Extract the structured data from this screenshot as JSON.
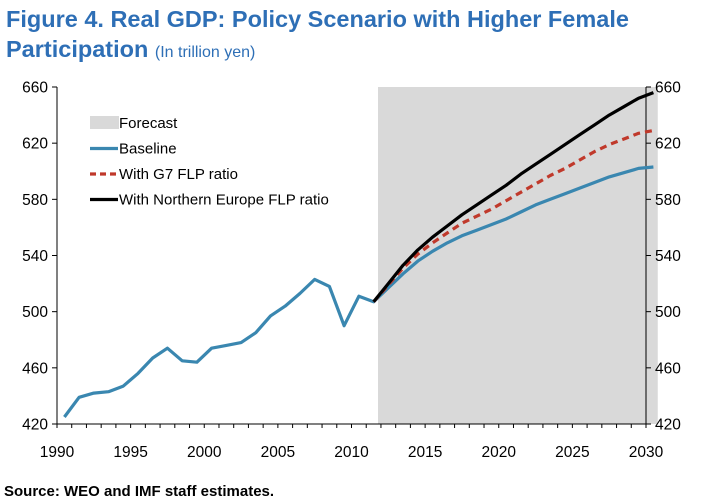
{
  "title": {
    "main": "Figure 4. Real GDP: Policy Scenario with Higher Female Participation",
    "unit": "(In trillion yen)"
  },
  "source": "Source: WEO and IMF staff estimates.",
  "chart_data": {
    "type": "line",
    "title": "Figure 4. Real GDP: Policy Scenario with Higher Female Participation",
    "subtitle": "(In trillion yen)",
    "xlabel": "",
    "ylabel": "",
    "xlim": [
      1990,
      2030
    ],
    "ylim": [
      420,
      660
    ],
    "x_ticks": [
      1990,
      1995,
      2000,
      2005,
      2010,
      2015,
      2020,
      2025,
      2030
    ],
    "y_ticks": [
      420,
      460,
      500,
      540,
      580,
      620,
      660
    ],
    "y_axis_both_sides": true,
    "grid": false,
    "legend_position": "top-left",
    "forecast_shading": {
      "label": "Forecast",
      "start": 2011.8,
      "end": 2030.8,
      "color": "#d9d9d9"
    },
    "series": [
      {
        "name": "Baseline",
        "color": "#3a87b0",
        "style": "solid",
        "x": [
          1990.5,
          1991.5,
          1992.5,
          1993.5,
          1994.5,
          1995.5,
          1996.5,
          1997.5,
          1998.5,
          1999.5,
          2000.5,
          2001.5,
          2002.5,
          2003.5,
          2004.5,
          2005.5,
          2006.5,
          2007.5,
          2008.5,
          2009.5,
          2010.5,
          2011.5,
          2012.5,
          2013.5,
          2014.5,
          2015.5,
          2016.5,
          2017.5,
          2018.5,
          2019.5,
          2020.5,
          2021.5,
          2022.5,
          2023.5,
          2024.5,
          2025.5,
          2026.5,
          2027.5,
          2028.5,
          2029.5,
          2030.5
        ],
        "values": [
          425,
          439,
          442,
          443,
          447,
          456,
          467,
          474,
          465,
          464,
          474,
          476,
          478,
          485,
          497,
          504,
          513,
          523,
          518,
          490,
          511,
          507,
          517,
          527,
          536,
          543,
          549,
          554,
          558,
          562,
          566,
          571,
          576,
          580,
          584,
          588,
          592,
          596,
          599,
          602,
          603
        ]
      },
      {
        "name": "With G7 FLP ratio",
        "color": "#c0392b",
        "style": "dashed",
        "x": [
          2011.5,
          2012.5,
          2013.5,
          2014.5,
          2015.5,
          2016.5,
          2017.5,
          2018.5,
          2019.5,
          2020.5,
          2021.5,
          2022.5,
          2023.5,
          2024.5,
          2025.5,
          2026.5,
          2027.5,
          2028.5,
          2029.5,
          2030.5
        ],
        "values": [
          507,
          519,
          531,
          541,
          549,
          556,
          563,
          568,
          573,
          579,
          585,
          591,
          597,
          602,
          608,
          614,
          619,
          623,
          627,
          629
        ]
      },
      {
        "name": "With Northern Europe FLP ratio",
        "color": "#000000",
        "style": "solid",
        "x": [
          2011.5,
          2012.5,
          2013.5,
          2014.5,
          2015.5,
          2016.5,
          2017.5,
          2018.5,
          2019.5,
          2020.5,
          2021.5,
          2022.5,
          2023.5,
          2024.5,
          2025.5,
          2026.5,
          2027.5,
          2028.5,
          2029.5,
          2030.5
        ],
        "values": [
          507,
          520,
          533,
          544,
          553,
          561,
          569,
          576,
          583,
          590,
          598,
          605,
          612,
          619,
          626,
          633,
          640,
          646,
          652,
          656
        ]
      }
    ]
  }
}
